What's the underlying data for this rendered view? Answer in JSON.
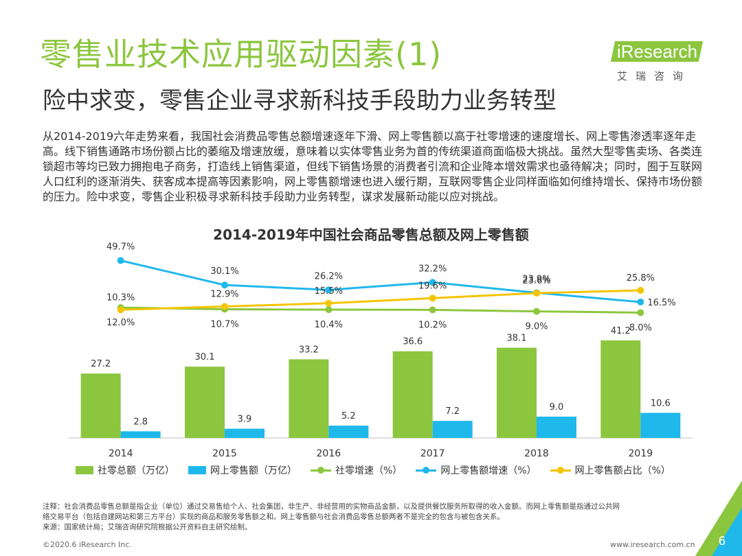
{
  "header": {
    "title": "零售业技术应用驱动因素(1)",
    "subtitle": "险中求变，零售企业寻求新科技手段助力业务转型"
  },
  "logo": {
    "brand": "iResearch",
    "sub": "艾瑞咨询",
    "brand_color": "#8cc63f"
  },
  "body_text": "从2014-2019六年走势来看，我国社会消费品零售总额增速逐年下滑、网上零售额以高于社零增速的速度增长、网上零售渗透率逐年走高。线下销售通路市场份额占比的萎缩及增速放缓，意味着以实体零售业务为首的传统渠道商面临极大挑战。虽然大型零售卖场、各类连锁超市等均已致力拥抱电子商务，打造线上销售渠道，但线下销售场景的消费者引流和企业降本增效需求也亟待解决；同时，囿于互联网人口红利的逐渐消失、获客成本提高等因素影响，网上零售额增速也进入缓行期，互联网零售企业同样面临如何维持增长、保持市场份额的压力。险中求变，零售企业积极寻求新科技手段助力业务转型，谋求发展新动能以应对挑战。",
  "chart_data": {
    "type": "bar+line",
    "title": "2014-2019年中国社会商品零售总额及网上零售额",
    "categories": [
      "2014",
      "2015",
      "2016",
      "2017",
      "2018",
      "2019"
    ],
    "bars": [
      {
        "name": "社零总额（万亿）",
        "color": "#8cc63f",
        "values": [
          27.2,
          30.1,
          33.2,
          36.6,
          38.1,
          41.2
        ],
        "labels": [
          "27.2",
          "30.1",
          "33.2",
          "36.6",
          "38.1",
          "41.2"
        ]
      },
      {
        "name": "网上零售额（万亿）",
        "color": "#1fb8eb",
        "values": [
          2.8,
          3.9,
          5.2,
          7.2,
          9.0,
          10.6
        ],
        "labels": [
          "2.8",
          "3.9",
          "5.2",
          "7.2",
          "9.0",
          "10.6"
        ]
      }
    ],
    "lines": [
      {
        "name": "社零增速（%）",
        "color": "#8cc63f",
        "values": [
          12.0,
          10.7,
          10.4,
          10.2,
          9.0,
          8.0
        ],
        "labels": [
          "12.0%",
          "10.7%",
          "10.4%",
          "10.2%",
          "9.0%",
          "8.0%"
        ]
      },
      {
        "name": "网上零售额增速（%）",
        "color": "#1fb8eb",
        "values": [
          49.7,
          30.1,
          26.2,
          32.2,
          23.9,
          16.5
        ],
        "labels": [
          "49.7%",
          "30.1%",
          "26.2%",
          "32.2%",
          "23.9%",
          "16.5%"
        ]
      },
      {
        "name": "网上零售额占比（%）",
        "color": "#f5c400",
        "values": [
          10.3,
          12.9,
          15.5,
          19.6,
          23.6,
          25.8
        ],
        "labels": [
          "10.3%",
          "12.9%",
          "15.5%",
          "19.6%",
          "23.6%",
          "25.8%"
        ]
      }
    ],
    "legend_position": "bottom",
    "grid": false
  },
  "notes": {
    "line1": "注释：社会消费品零售总额是指企业（单位）通过交易售给个人、社会集团，非生产、非经营用的实物商品金额，以及提供餐饮服务所取得的收入金额。而网上零售额是指通过公共网",
    "line2": "络交易平台（包括自建网站和第三方平台）实现的商品和服务零售额之和。网上零售额与社会消费品零售总额两者不是完全的包含与被包含关系。",
    "line3": "来源：国家统计局；艾瑞咨询研究院根据公开资料自主研究绘制。"
  },
  "footer": {
    "copyright": "©2020.6 iResearch Inc.",
    "website": "www.iresearch.com.cn",
    "page_number": "6"
  }
}
